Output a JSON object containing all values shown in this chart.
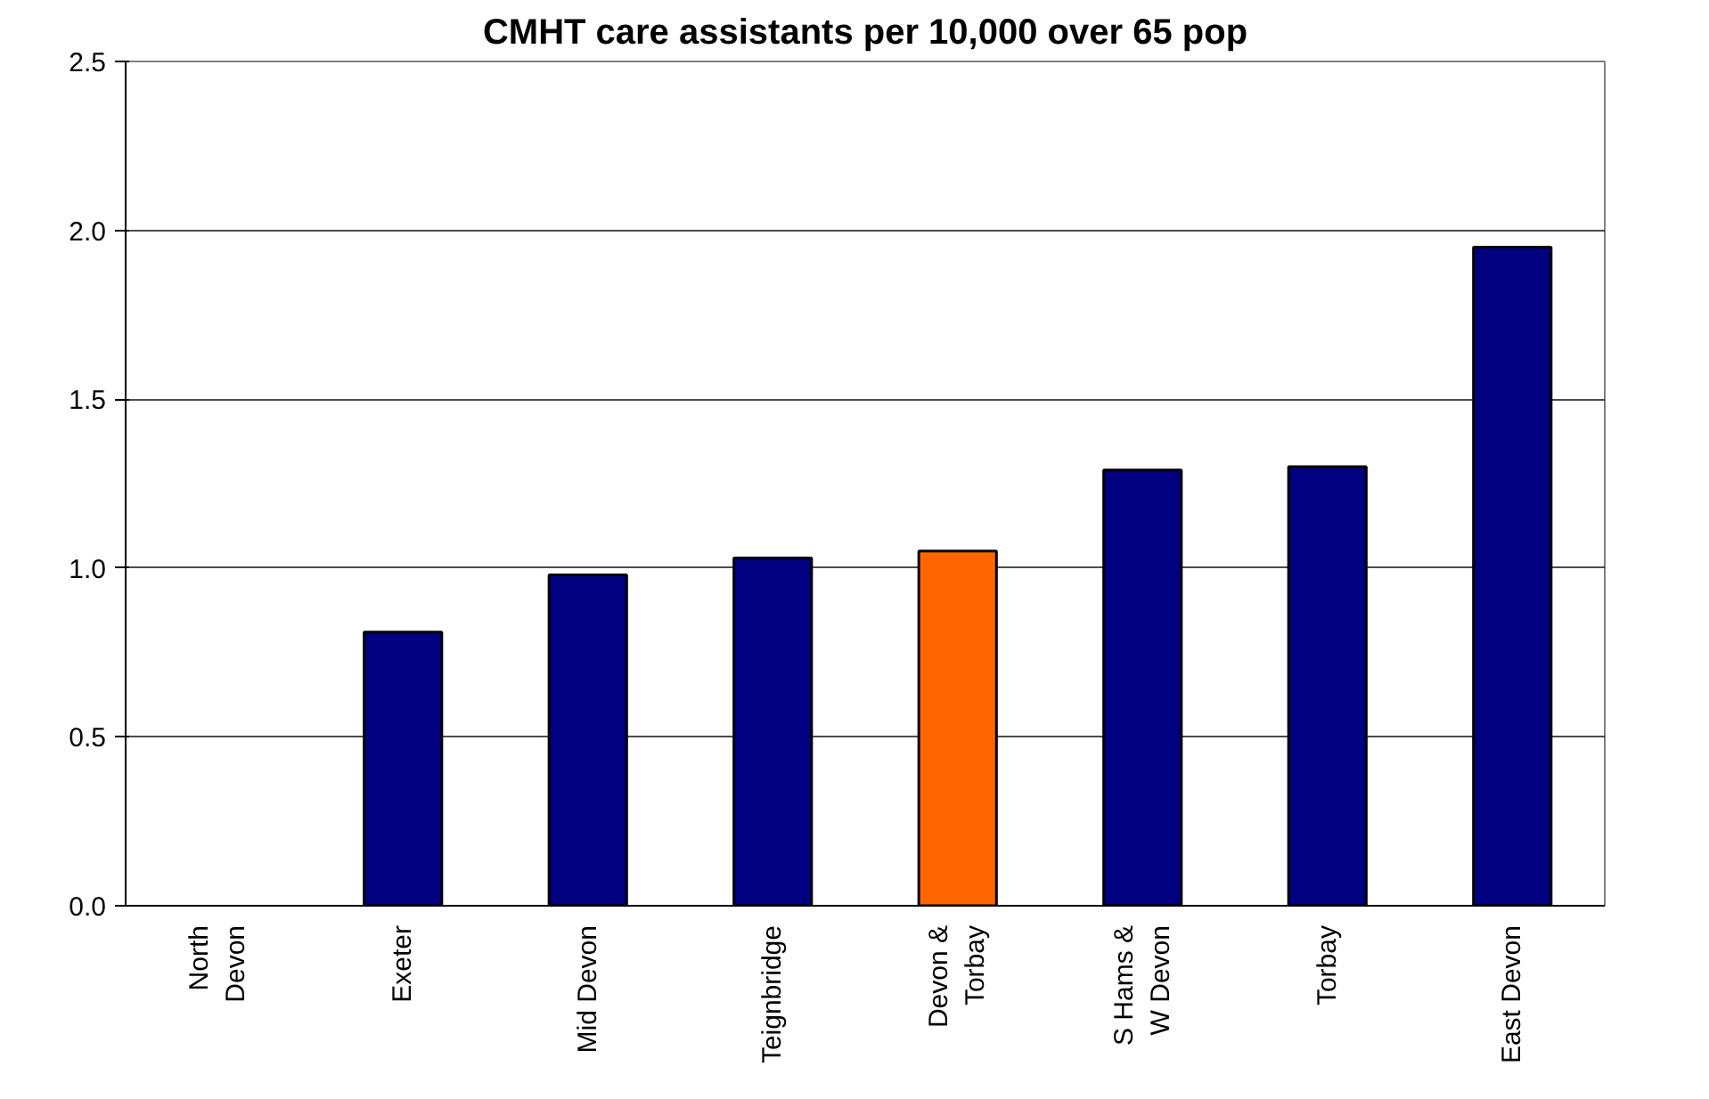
{
  "chart_data": {
    "type": "bar",
    "title": "CMHT care assistants per 10,000 over 65 pop",
    "categories": [
      "North\nDevon",
      "Exeter",
      "Mid Devon",
      "Teignbridge",
      "Devon &\nTorbay",
      "S Hams &\nW Devon",
      "Torbay",
      "East Devon"
    ],
    "values": [
      null,
      0.81,
      0.98,
      1.03,
      1.05,
      1.29,
      1.3,
      1.95
    ],
    "colors": [
      "#000080",
      "#000080",
      "#000080",
      "#000080",
      "#ff6600",
      "#000080",
      "#000080",
      "#000080"
    ],
    "ylim": [
      0,
      2.5
    ],
    "yticks": [
      {
        "value": 0,
        "label": "0.0"
      },
      {
        "value": 0.5,
        "label": "0.5"
      },
      {
        "value": 1,
        "label": "1.0"
      },
      {
        "value": 1.5,
        "label": "1.5"
      },
      {
        "value": 2,
        "label": "2.0"
      },
      {
        "value": 2.5,
        "label": "2.5"
      }
    ],
    "grid": "y"
  }
}
